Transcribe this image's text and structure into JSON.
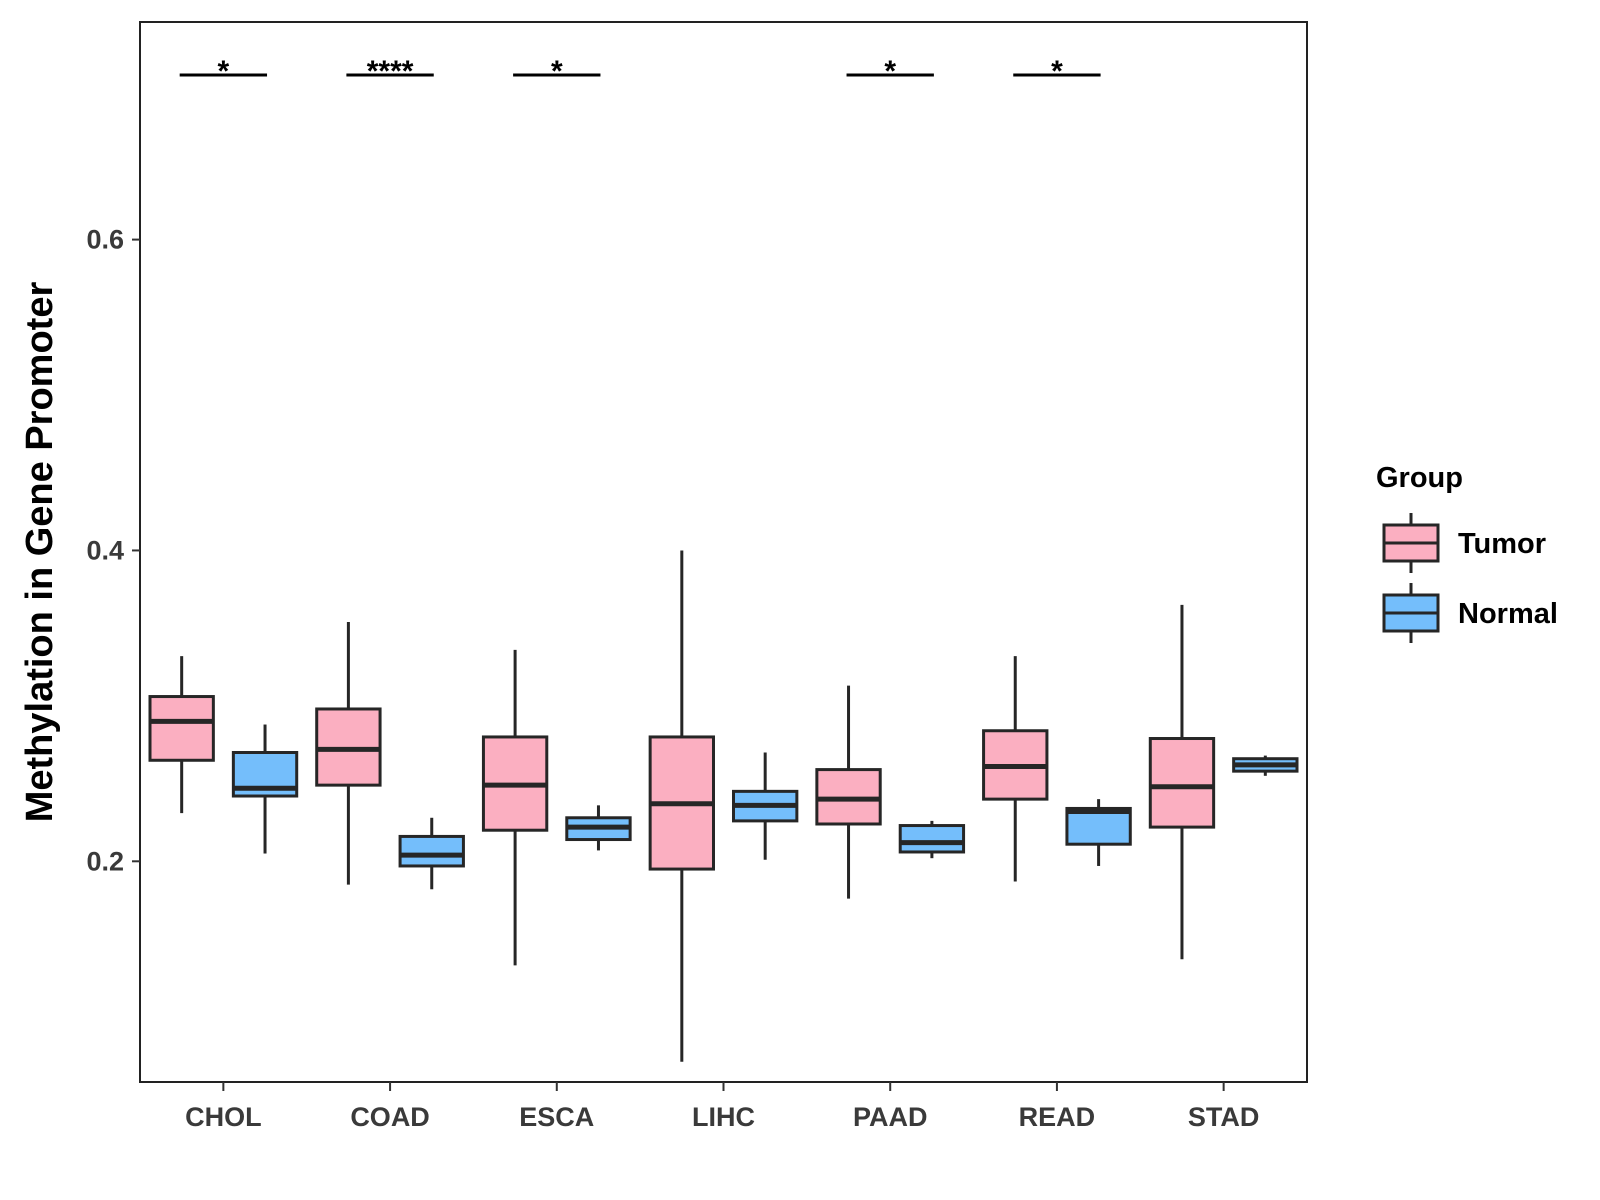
{
  "chart_data": {
    "type": "boxplot",
    "title": "",
    "xlabel": "",
    "ylabel": "Methylation in Gene Promoter",
    "ylim": [
      0.058,
      0.74
    ],
    "yticks": [
      0.2,
      0.4,
      0.6
    ],
    "ytick_labels": [
      "0.2",
      "0.4",
      "0.6"
    ],
    "categories": [
      "CHOL",
      "COAD",
      "ESCA",
      "LIHC",
      "PAAD",
      "READ",
      "STAD"
    ],
    "legend": {
      "title": "Group",
      "position": "right"
    },
    "colors": {
      "Tumor": "#FBAFC1",
      "Normal": "#74BEFB",
      "stroke": "#262626"
    },
    "series": [
      {
        "name": "Tumor",
        "boxes": [
          {
            "category": "CHOL",
            "min": 0.231,
            "q1": 0.265,
            "median": 0.29,
            "q3": 0.306,
            "max": 0.332
          },
          {
            "category": "COAD",
            "min": 0.185,
            "q1": 0.249,
            "median": 0.272,
            "q3": 0.298,
            "max": 0.354
          },
          {
            "category": "ESCA",
            "min": 0.133,
            "q1": 0.22,
            "median": 0.249,
            "q3": 0.28,
            "max": 0.336
          },
          {
            "category": "LIHC",
            "min": 0.071,
            "q1": 0.195,
            "median": 0.237,
            "q3": 0.28,
            "max": 0.4
          },
          {
            "category": "PAAD",
            "min": 0.176,
            "q1": 0.224,
            "median": 0.24,
            "q3": 0.259,
            "max": 0.313
          },
          {
            "category": "READ",
            "min": 0.187,
            "q1": 0.24,
            "median": 0.261,
            "q3": 0.284,
            "max": 0.332
          },
          {
            "category": "STAD",
            "min": 0.137,
            "q1": 0.222,
            "median": 0.248,
            "q3": 0.279,
            "max": 0.365
          }
        ]
      },
      {
        "name": "Normal",
        "boxes": [
          {
            "category": "CHOL",
            "min": 0.205,
            "q1": 0.242,
            "median": 0.247,
            "q3": 0.27,
            "max": 0.288
          },
          {
            "category": "COAD",
            "min": 0.182,
            "q1": 0.197,
            "median": 0.204,
            "q3": 0.216,
            "max": 0.228
          },
          {
            "category": "ESCA",
            "min": 0.207,
            "q1": 0.214,
            "median": 0.222,
            "q3": 0.228,
            "max": 0.236
          },
          {
            "category": "LIHC",
            "min": 0.201,
            "q1": 0.226,
            "median": 0.236,
            "q3": 0.245,
            "max": 0.27
          },
          {
            "category": "PAAD",
            "min": 0.202,
            "q1": 0.206,
            "median": 0.212,
            "q3": 0.223,
            "max": 0.226
          },
          {
            "category": "READ",
            "min": 0.197,
            "q1": 0.211,
            "median": 0.232,
            "q3": 0.234,
            "max": 0.24
          },
          {
            "category": "STAD",
            "min": 0.255,
            "q1": 0.258,
            "median": 0.262,
            "q3": 0.266,
            "max": 0.268
          }
        ]
      }
    ],
    "annotations": [
      {
        "category": "CHOL",
        "label": "*"
      },
      {
        "category": "COAD",
        "label": "****"
      },
      {
        "category": "ESCA",
        "label": "*"
      },
      {
        "category": "PAAD",
        "label": "*"
      },
      {
        "category": "READ",
        "label": "*"
      }
    ]
  }
}
